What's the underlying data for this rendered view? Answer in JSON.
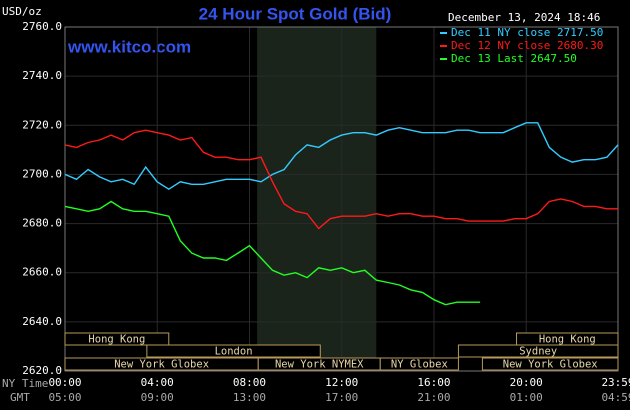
{
  "chart_data": {
    "type": "line",
    "title": "24 Hour Spot Gold (Bid)",
    "subtitle": "www.kitco.com",
    "timestamp": "December 13, 2024 18:46",
    "y_label": "USD/oz",
    "x_label": "NY Time",
    "x2_label": "GMT",
    "x": [
      0,
      0.5,
      1,
      1.5,
      2,
      2.5,
      3,
      3.5,
      4,
      4.5,
      5,
      5.5,
      6,
      6.5,
      7,
      7.5,
      8,
      8.5,
      9,
      9.5,
      10,
      10.5,
      11,
      11.5,
      12,
      12.5,
      13,
      13.5,
      14,
      14.5,
      15,
      15.5,
      16,
      16.5,
      17,
      17.5,
      18,
      18.5,
      19,
      19.5,
      20,
      20.5,
      21,
      21.5,
      22,
      22.5,
      23,
      23.5,
      23.98
    ],
    "series": [
      {
        "name": "Dec 11 NY close 2717.50",
        "color": "#33ccff",
        "values": [
          2700,
          2698,
          2702,
          2699,
          2697,
          2698,
          2696,
          2703,
          2697,
          2694,
          2697,
          2696,
          2696,
          2697,
          2698,
          2698,
          2698,
          2697,
          2700,
          2702,
          2708,
          2712,
          2711,
          2714,
          2716,
          2717,
          2717,
          2716,
          2718,
          2719,
          2718,
          2717,
          2717,
          2717,
          2718,
          2718,
          2717,
          2717,
          2717,
          2719,
          2721,
          2721,
          2711,
          2707,
          2705,
          2706,
          2706,
          2707,
          2712
        ]
      },
      {
        "name": "Dec 12 NY close 2680.30",
        "color": "#ff1a1a",
        "values": [
          2712,
          2711,
          2713,
          2714,
          2716,
          2714,
          2717,
          2718,
          2717,
          2716,
          2714,
          2715,
          2709,
          2707,
          2707,
          2706,
          2706,
          2707,
          2697,
          2688,
          2685,
          2684,
          2678,
          2682,
          2683,
          2683,
          2683,
          2684,
          2683,
          2684,
          2684,
          2683,
          2683,
          2682,
          2682,
          2681,
          2681,
          2681,
          2681,
          2682,
          2682,
          2684,
          2689,
          2690,
          2689,
          2687,
          2687,
          2686,
          2686
        ]
      },
      {
        "name": "Dec 13 Last 2647.50",
        "color": "#22ff22",
        "values": [
          2687,
          2686,
          2685,
          2686,
          2689,
          2686,
          2685,
          2685,
          2684,
          2683,
          2673,
          2668,
          2666,
          2666,
          2665,
          2668,
          2671,
          2666,
          2661,
          2659,
          2660,
          2658,
          2662,
          2661,
          2662,
          2660,
          2661,
          2657,
          2656,
          2655,
          2653,
          2652,
          2649,
          2647,
          2648,
          2648,
          2648,
          null,
          null,
          null,
          null,
          null,
          null,
          null,
          null,
          null,
          null,
          null,
          null
        ]
      }
    ],
    "xlim": [
      0,
      23.98
    ],
    "ylim": [
      2620,
      2760
    ],
    "yticks": [
      {
        "value": 2620,
        "label": "2620.0"
      },
      {
        "value": 2640,
        "label": "2640.0"
      },
      {
        "value": 2660,
        "label": "2660.0"
      },
      {
        "value": 2680,
        "label": "2680.0"
      },
      {
        "value": 2700,
        "label": "2700.0"
      },
      {
        "value": 2720,
        "label": "2720.0"
      },
      {
        "value": 2740,
        "label": "2740.0"
      },
      {
        "value": 2760,
        "label": "2760.0"
      }
    ],
    "xticks": [
      {
        "value": 0,
        "label": "00:00"
      },
      {
        "value": 4,
        "label": "04:00"
      },
      {
        "value": 8,
        "label": "08:00"
      },
      {
        "value": 12,
        "label": "12:00"
      },
      {
        "value": 16,
        "label": "16:00"
      },
      {
        "value": 20,
        "label": "20:00"
      },
      {
        "value": 23.98,
        "label": "23:59"
      }
    ],
    "x2ticks": [
      {
        "value": 0,
        "label": "05:00"
      },
      {
        "value": 4,
        "label": "09:00"
      },
      {
        "value": 8,
        "label": "13:00"
      },
      {
        "value": 12,
        "label": "17:00"
      },
      {
        "value": 16,
        "label": "21:00"
      },
      {
        "value": 20,
        "label": "01:00"
      },
      {
        "value": 23.98,
        "label": "04:59"
      }
    ],
    "highlight": [
      8.33,
      13.5
    ],
    "grid": true,
    "sessions": [
      {
        "label": "Hong Kong",
        "start": 0,
        "end": 4.5
      },
      {
        "label": "London",
        "start": 3.55,
        "end": 11.07
      },
      {
        "label": "New York Globex",
        "start": 0,
        "end": 8.38
      },
      {
        "label": "New York NYMEX",
        "start": 8.38,
        "end": 13.67
      },
      {
        "label": "NY Globex",
        "start": 13.67,
        "end": 17.06
      },
      {
        "label": "Hong Kong",
        "start": 19.58,
        "end": 23.98
      },
      {
        "label": "Sydney",
        "start": 17.06,
        "end": 23.98
      },
      {
        "label": "New York Globex",
        "start": 18.1,
        "end": 23.98
      }
    ]
  }
}
